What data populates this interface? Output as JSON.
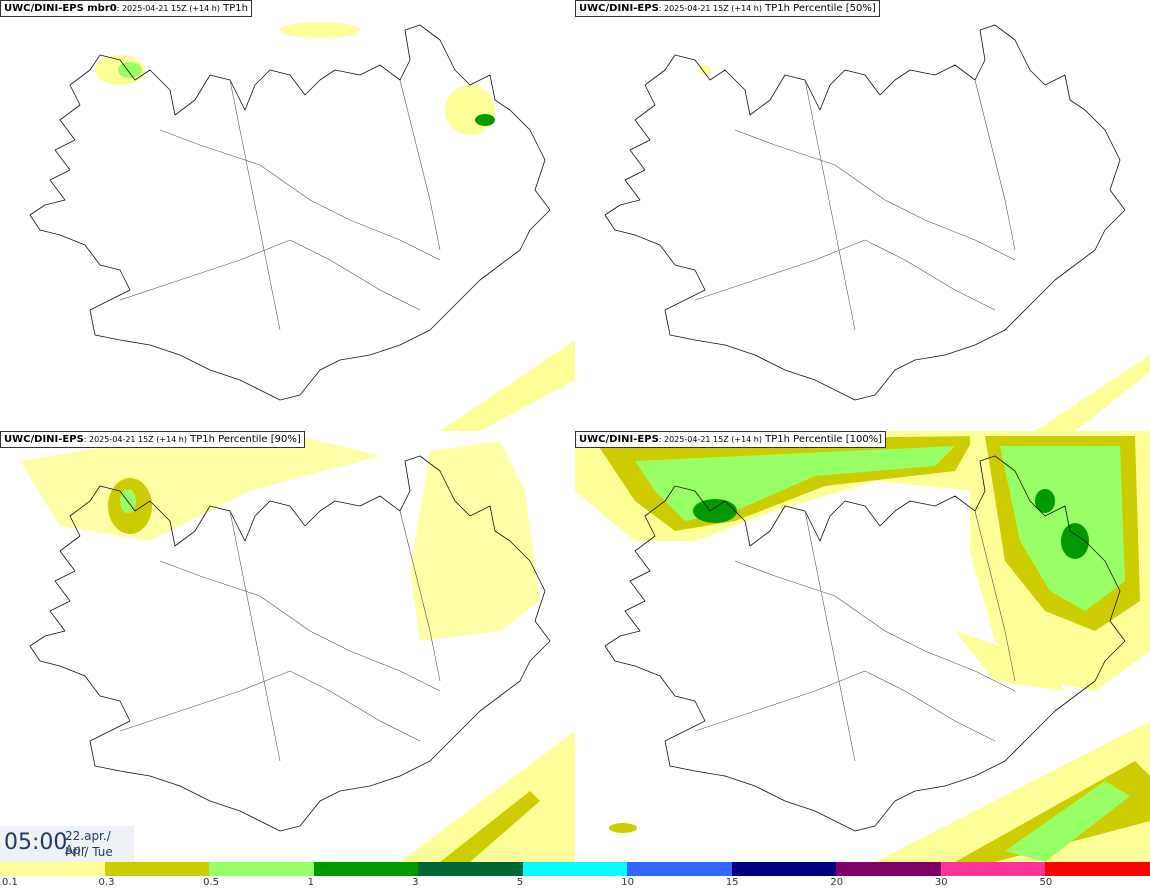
{
  "panels": [
    {
      "model": "UWC/DINI-EPS mbr0",
      "run": ": 2025-04-21 15Z (+14 h)",
      "field": " TP1h"
    },
    {
      "model": "UWC/DINI-EPS",
      "run": ": 2025-04-21 15Z (+14 h)",
      "field": " TP1h Percentile [50%]"
    },
    {
      "model": "UWC/DINI-EPS",
      "run": ": 2025-04-21 15Z (+14 h)",
      "field": " TP1h Percentile [90%]"
    },
    {
      "model": "UWC/DINI-EPS",
      "run": ": 2025-04-21 15Z (+14 h)",
      "field": " TP1h Percentile [100%]"
    }
  ],
  "valid_time": {
    "time": "05:00",
    "date": "22.apr./ Apr",
    "weekday": "Þri./ Tue"
  },
  "colorbar": {
    "colors": [
      "#ffff99",
      "#cccc00",
      "#99ff66",
      "#009900",
      "#006633",
      "#00ffff",
      "#3366ff",
      "#000080",
      "#800066",
      "#ff3399",
      "#ff0000"
    ],
    "labels": [
      "0.1",
      "0.3",
      "0.5",
      "1",
      "3",
      "5",
      "10",
      "15",
      "20",
      "30",
      "50"
    ]
  }
}
